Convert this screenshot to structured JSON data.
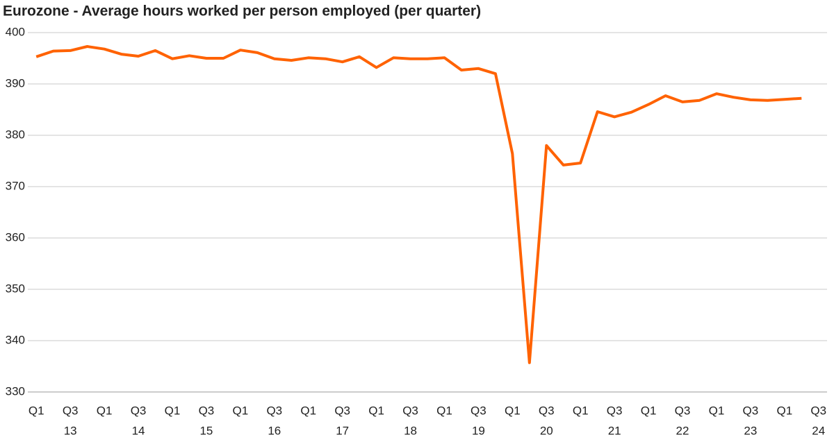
{
  "chart_data": {
    "type": "line",
    "title": "Eurozone - Average hours worked per person employed (per quarter)",
    "categories": [
      "Q1",
      null,
      "Q3",
      null,
      "Q1",
      null,
      "Q3",
      null,
      "Q1",
      null,
      "Q3",
      null,
      "Q1",
      null,
      "Q3",
      null,
      "Q1",
      null,
      "Q3",
      null,
      "Q1",
      null,
      "Q3",
      null,
      "Q1",
      null,
      "Q3",
      null,
      "Q1",
      null,
      "Q3",
      null,
      "Q1",
      null,
      "Q3",
      null,
      "Q1",
      null,
      "Q3",
      null,
      "Q1",
      null,
      "Q3",
      null,
      "Q1",
      null,
      "Q3"
    ],
    "year_labels": [
      null,
      null,
      "13",
      null,
      null,
      null,
      "14",
      null,
      null,
      null,
      "15",
      null,
      null,
      null,
      "16",
      null,
      null,
      null,
      "17",
      null,
      null,
      null,
      "18",
      null,
      null,
      null,
      "19",
      null,
      null,
      null,
      "20",
      null,
      null,
      null,
      "21",
      null,
      null,
      null,
      "22",
      null,
      null,
      null,
      "23",
      null,
      null,
      null,
      "24"
    ],
    "series": [
      {
        "name": "Average hours worked",
        "color": "#ff6200",
        "values": [
          395.3,
          396.4,
          396.5,
          397.3,
          396.8,
          395.8,
          395.4,
          396.5,
          394.9,
          395.5,
          395.0,
          395.0,
          396.6,
          396.1,
          394.9,
          394.6,
          395.1,
          394.9,
          394.3,
          395.3,
          393.2,
          395.1,
          394.9,
          394.9,
          395.1,
          392.7,
          393.0,
          392.0,
          376.4,
          335.7,
          378.0,
          374.2,
          374.6,
          384.6,
          383.6,
          384.5,
          386.0,
          387.7,
          386.5,
          386.8,
          388.1,
          387.4,
          386.9,
          386.8,
          387.0,
          387.2,
          null
        ]
      }
    ],
    "ylim": [
      330,
      400
    ],
    "yticks": [
      330,
      340,
      350,
      360,
      370,
      380,
      390,
      400
    ],
    "grid": true
  }
}
